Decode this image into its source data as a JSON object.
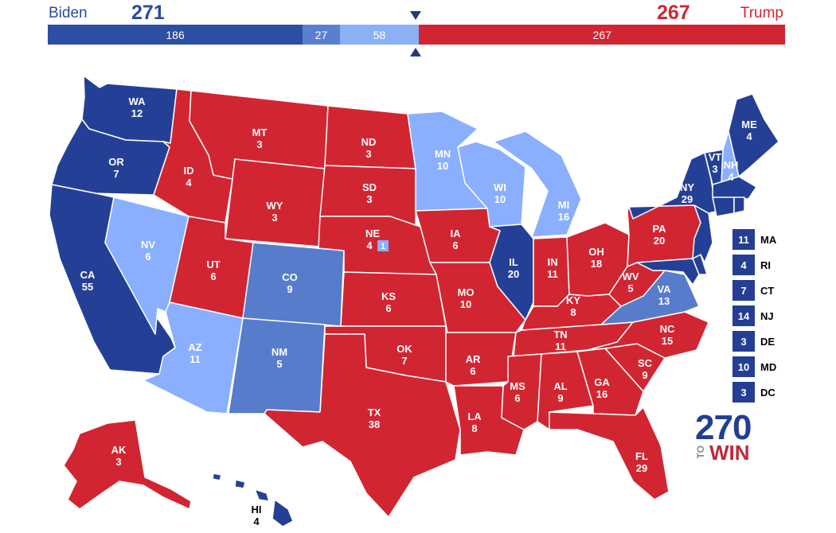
{
  "header": {
    "biden": {
      "name": "Biden",
      "total": "271",
      "color": "#2b4a9c"
    },
    "trump": {
      "name": "Trump",
      "total": "267",
      "color": "#d22532"
    },
    "bar": [
      {
        "label": "186",
        "value": 186,
        "color": "#2c4ea3"
      },
      {
        "label": "27",
        "value": 27,
        "color": "#5a7fd1"
      },
      {
        "label": "58",
        "value": 58,
        "color": "#8bb0f4"
      },
      {
        "label": "267",
        "value": 267,
        "color": "#d22532"
      }
    ],
    "marker": "270-to-win-marker"
  },
  "colors": {
    "safe_dem": "#244096",
    "likely_dem": "#577ccc",
    "lean_dem": "#8aafff",
    "safe_rep": "#d22532"
  },
  "states": [
    {
      "abbr": "WA",
      "ev": "12",
      "rating": "safe_dem"
    },
    {
      "abbr": "OR",
      "ev": "7",
      "rating": "safe_dem"
    },
    {
      "abbr": "CA",
      "ev": "55",
      "rating": "safe_dem"
    },
    {
      "abbr": "NV",
      "ev": "6",
      "rating": "lean_dem"
    },
    {
      "abbr": "ID",
      "ev": "4",
      "rating": "safe_rep"
    },
    {
      "abbr": "MT",
      "ev": "3",
      "rating": "safe_rep"
    },
    {
      "abbr": "WY",
      "ev": "3",
      "rating": "safe_rep"
    },
    {
      "abbr": "UT",
      "ev": "6",
      "rating": "safe_rep"
    },
    {
      "abbr": "AZ",
      "ev": "11",
      "rating": "lean_dem"
    },
    {
      "abbr": "CO",
      "ev": "9",
      "rating": "likely_dem"
    },
    {
      "abbr": "NM",
      "ev": "5",
      "rating": "likely_dem"
    },
    {
      "abbr": "ND",
      "ev": "3",
      "rating": "safe_rep"
    },
    {
      "abbr": "SD",
      "ev": "3",
      "rating": "safe_rep"
    },
    {
      "abbr": "NE",
      "ev": "4",
      "rating": "safe_rep",
      "split": "1"
    },
    {
      "abbr": "KS",
      "ev": "6",
      "rating": "safe_rep"
    },
    {
      "abbr": "OK",
      "ev": "7",
      "rating": "safe_rep"
    },
    {
      "abbr": "TX",
      "ev": "38",
      "rating": "safe_rep"
    },
    {
      "abbr": "MN",
      "ev": "10",
      "rating": "lean_dem"
    },
    {
      "abbr": "IA",
      "ev": "6",
      "rating": "safe_rep"
    },
    {
      "abbr": "MO",
      "ev": "10",
      "rating": "safe_rep"
    },
    {
      "abbr": "AR",
      "ev": "6",
      "rating": "safe_rep"
    },
    {
      "abbr": "LA",
      "ev": "8",
      "rating": "safe_rep"
    },
    {
      "abbr": "WI",
      "ev": "10",
      "rating": "lean_dem"
    },
    {
      "abbr": "IL",
      "ev": "20",
      "rating": "safe_dem"
    },
    {
      "abbr": "MI",
      "ev": "16",
      "rating": "lean_dem"
    },
    {
      "abbr": "IN",
      "ev": "11",
      "rating": "safe_rep"
    },
    {
      "abbr": "OH",
      "ev": "18",
      "rating": "safe_rep"
    },
    {
      "abbr": "KY",
      "ev": "8",
      "rating": "safe_rep"
    },
    {
      "abbr": "TN",
      "ev": "11",
      "rating": "safe_rep"
    },
    {
      "abbr": "MS",
      "ev": "6",
      "rating": "safe_rep"
    },
    {
      "abbr": "AL",
      "ev": "9",
      "rating": "safe_rep"
    },
    {
      "abbr": "GA",
      "ev": "16",
      "rating": "safe_rep"
    },
    {
      "abbr": "FL",
      "ev": "29",
      "rating": "safe_rep"
    },
    {
      "abbr": "SC",
      "ev": "9",
      "rating": "safe_rep"
    },
    {
      "abbr": "NC",
      "ev": "15",
      "rating": "safe_rep"
    },
    {
      "abbr": "VA",
      "ev": "13",
      "rating": "likely_dem"
    },
    {
      "abbr": "WV",
      "ev": "5",
      "rating": "safe_rep"
    },
    {
      "abbr": "PA",
      "ev": "20",
      "rating": "safe_rep"
    },
    {
      "abbr": "NY",
      "ev": "29",
      "rating": "safe_dem"
    },
    {
      "abbr": "VT",
      "ev": "3",
      "rating": "safe_dem"
    },
    {
      "abbr": "NH",
      "ev": "4",
      "rating": "lean_dem"
    },
    {
      "abbr": "ME",
      "ev": "4",
      "rating": "safe_dem"
    },
    {
      "abbr": "AK",
      "ev": "3",
      "rating": "safe_rep"
    },
    {
      "abbr": "HI",
      "ev": "4",
      "rating": "safe_dem"
    }
  ],
  "small_states": [
    {
      "ev": "11",
      "abbr": "MA"
    },
    {
      "ev": "4",
      "abbr": "RI"
    },
    {
      "ev": "7",
      "abbr": "CT"
    },
    {
      "ev": "14",
      "abbr": "NJ"
    },
    {
      "ev": "3",
      "abbr": "DE"
    },
    {
      "ev": "10",
      "abbr": "MD"
    },
    {
      "ev": "3",
      "abbr": "DC"
    }
  ],
  "logo": {
    "number": "270",
    "to": "TO",
    "win": "WIN"
  }
}
